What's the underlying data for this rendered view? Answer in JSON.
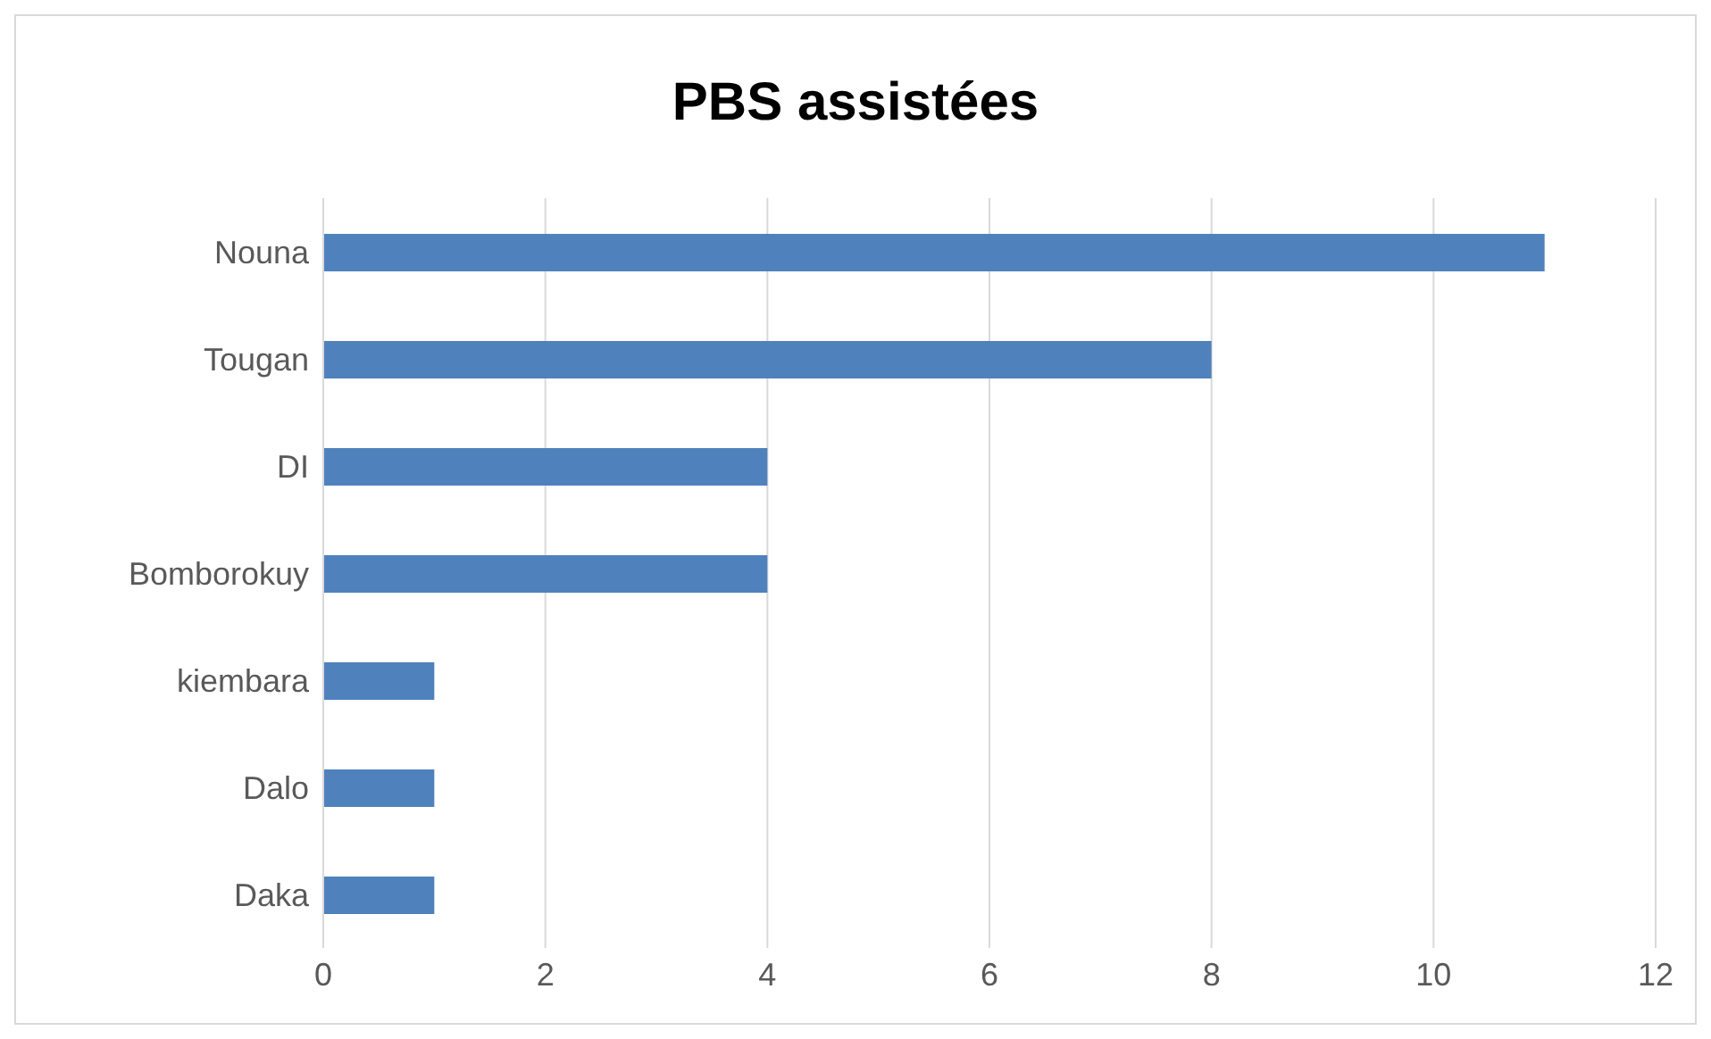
{
  "chart_data": {
    "type": "bar",
    "orientation": "horizontal",
    "title": "PBS assistées",
    "categories": [
      "Nouna",
      "Tougan",
      "DI",
      "Bomborokuy",
      "kiembara",
      "Dalo",
      "Daka"
    ],
    "values": [
      11,
      8,
      4,
      4,
      1,
      1,
      1
    ],
    "color": "#4f81bd",
    "xlim": [
      0,
      12
    ],
    "xticks": [
      0,
      2,
      4,
      6,
      8,
      10,
      12
    ],
    "grid": "x"
  }
}
